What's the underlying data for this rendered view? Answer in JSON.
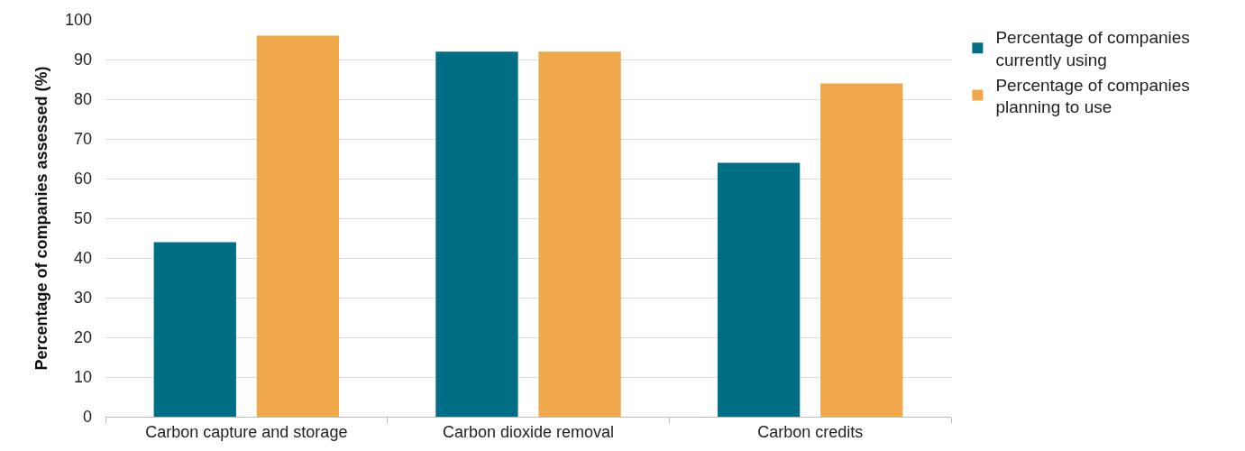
{
  "chart_data": {
    "type": "bar",
    "ylabel": "Percentage of companies assessed (%)",
    "categories": [
      "Carbon capture and storage",
      "Carbon dioxide removal",
      "Carbon credits"
    ],
    "series": [
      {
        "name": "Percentage of companies currently using",
        "color": "#006f86",
        "values": [
          44,
          92,
          64
        ]
      },
      {
        "name": "Percentage of companies planning to use",
        "color": "#f0a84b",
        "values": [
          96,
          92,
          84
        ]
      }
    ],
    "ylim": [
      0,
      100
    ],
    "yticks": [
      0,
      10,
      20,
      30,
      40,
      50,
      60,
      70,
      80,
      90,
      100
    ],
    "grid": "y",
    "legend": "top right"
  }
}
